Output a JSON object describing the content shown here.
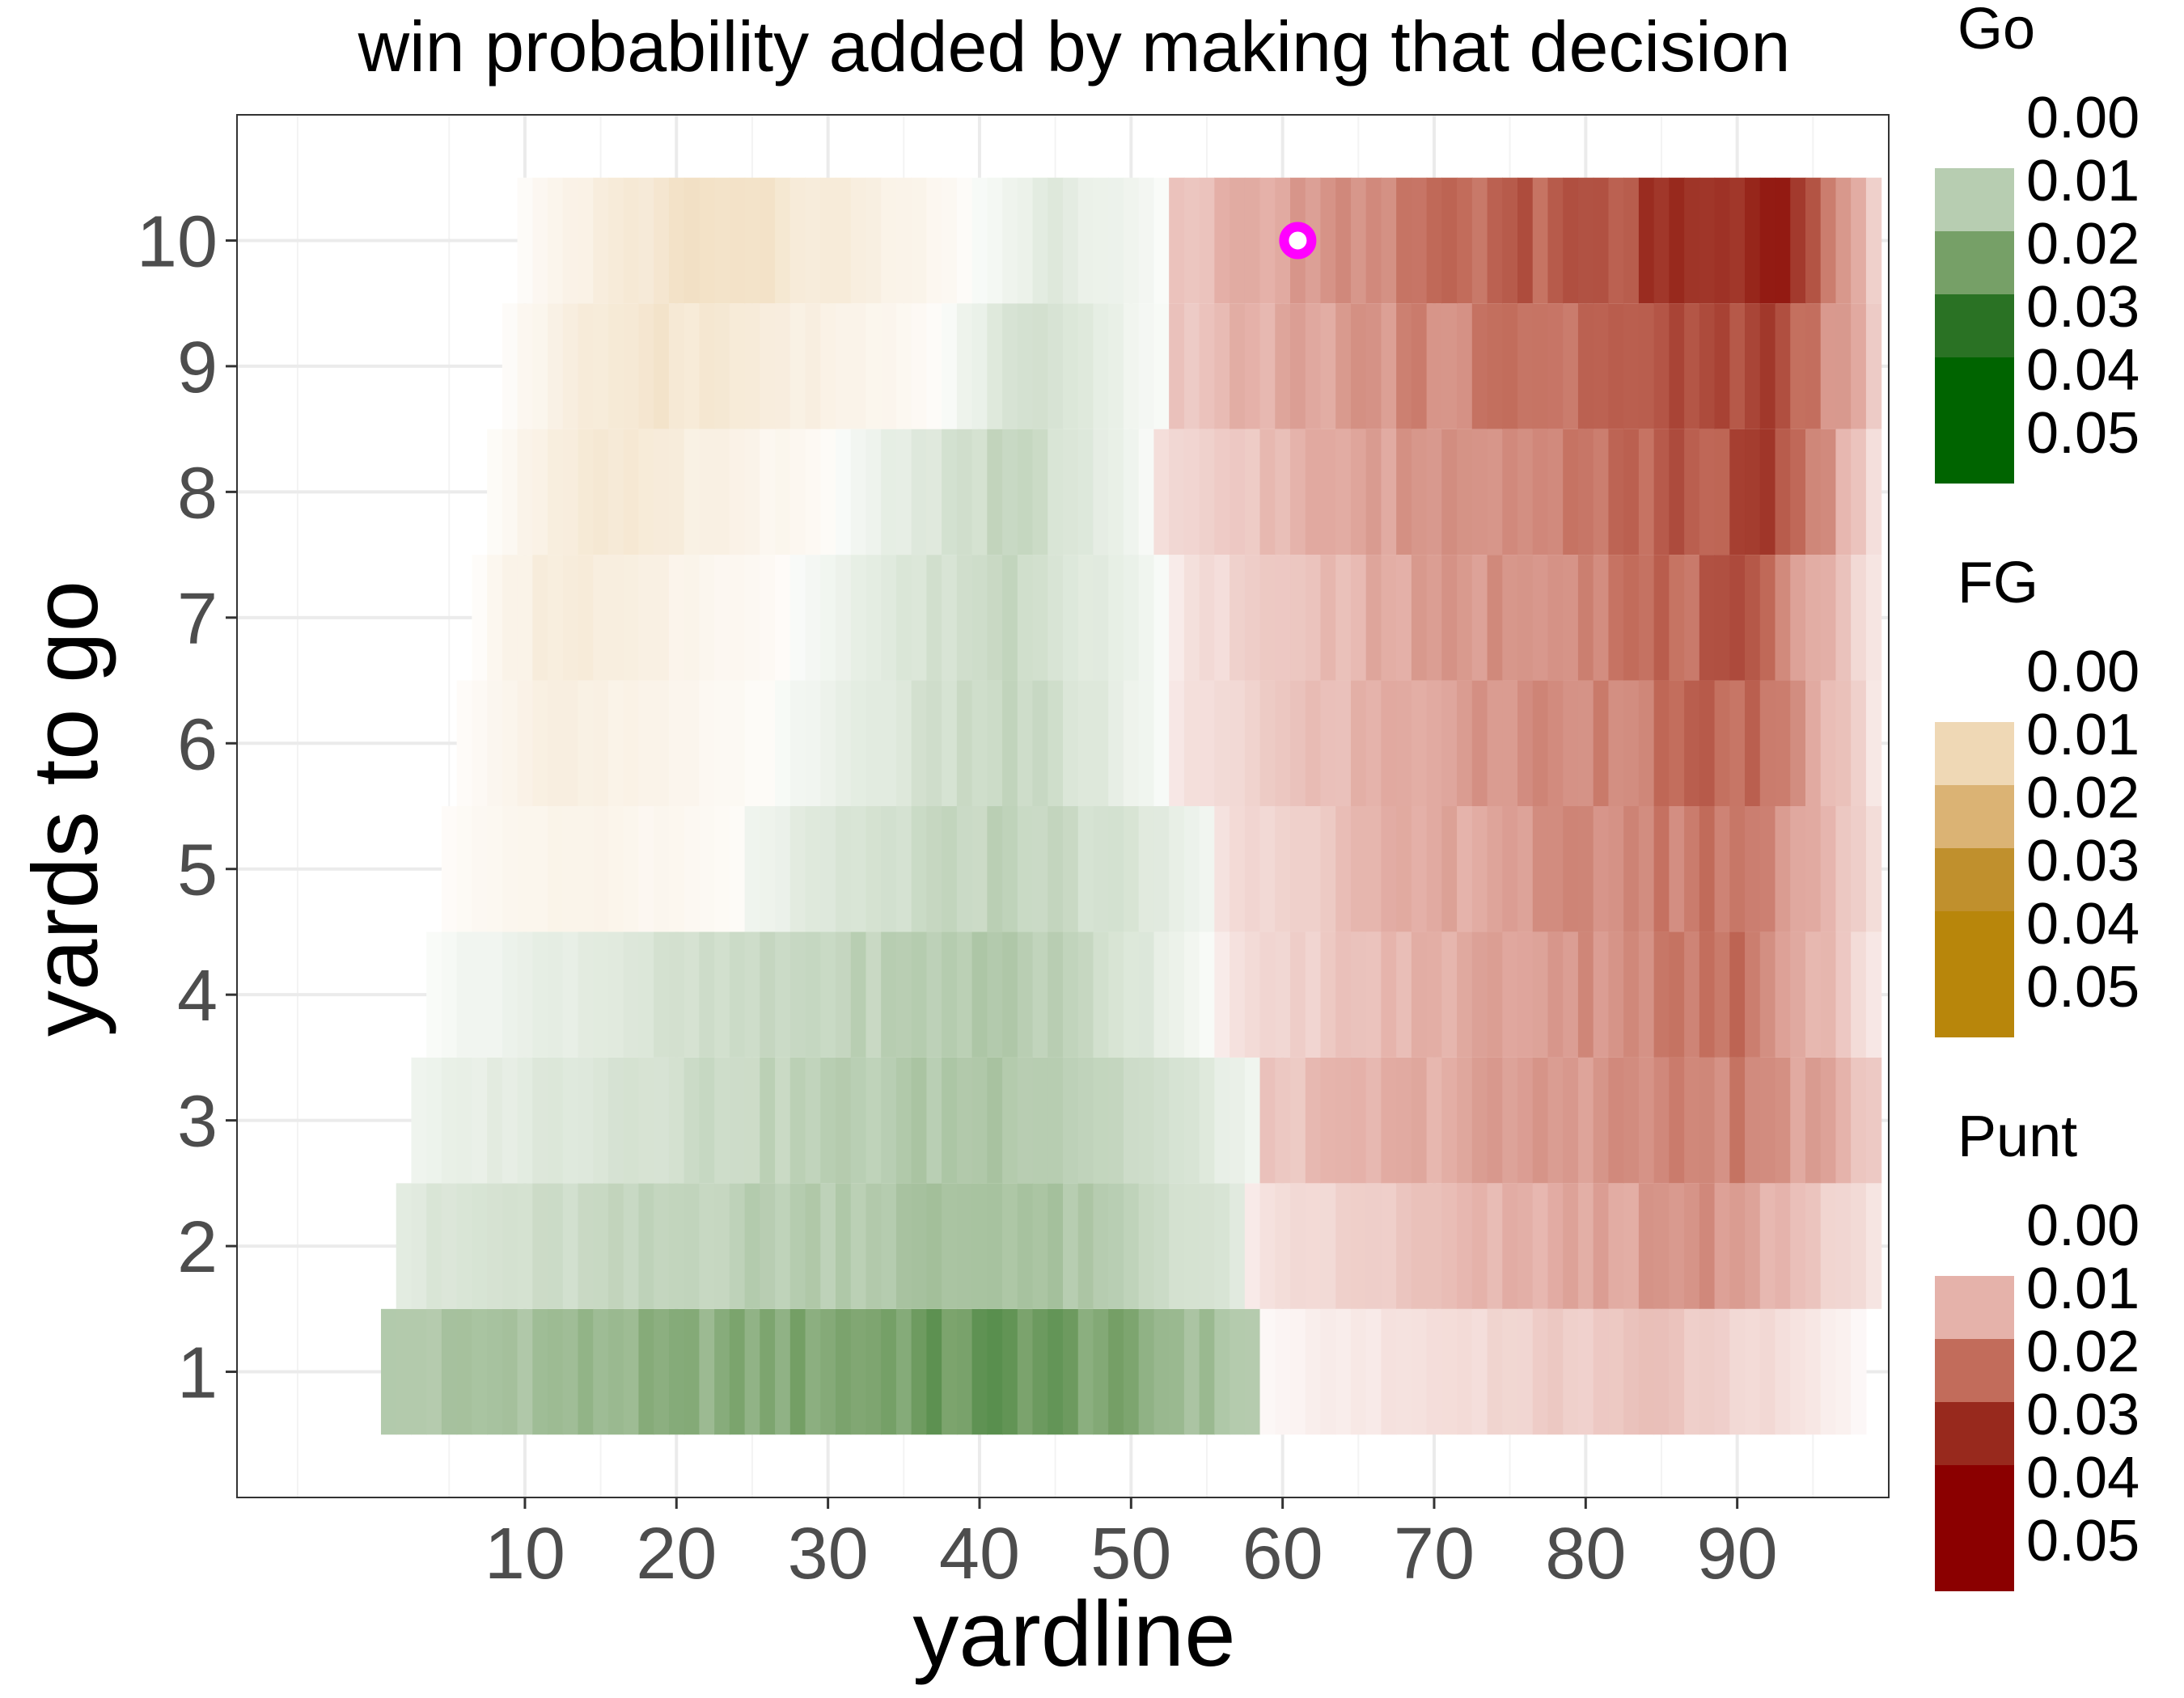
{
  "chart_data": {
    "type": "heatmap",
    "title": "win probability added by making that decision",
    "xlabel": "yardline",
    "ylabel": "yards to go",
    "xlim": [
      -9,
      100
    ],
    "ylim": [
      0.0,
      11.0
    ],
    "xticks": [
      10,
      20,
      30,
      40,
      50,
      60,
      70,
      80,
      90
    ],
    "yticks": [
      1,
      2,
      3,
      4,
      5,
      6,
      7,
      8,
      9,
      10
    ],
    "grid": true,
    "legend_position": "right",
    "highlight_point": {
      "x": 61,
      "y": 10,
      "color": "#ff00ff"
    },
    "decision_colors": {
      "Go": "#006400",
      "FG": "#b8860b",
      "Punt": "#8b0000"
    },
    "rows": [
      {
        "ydstogo": 1,
        "x_start": 1,
        "x_end": 98,
        "segments": [
          {
            "decision": "Go",
            "from": 1,
            "to": 58,
            "peak": 43,
            "peak_value": 0.022,
            "edge_value": 0.01
          },
          {
            "decision": "Punt",
            "from": 59,
            "to": 98,
            "peak": 85,
            "peak_value": 0.008,
            "edge_value": 0.001
          }
        ]
      },
      {
        "ydstogo": 2,
        "x_start": 2,
        "x_end": 99,
        "segments": [
          {
            "decision": "Go",
            "from": 2,
            "to": 57,
            "peak": 42,
            "peak_value": 0.013,
            "edge_value": 0.004
          },
          {
            "decision": "Punt",
            "from": 58,
            "to": 99,
            "peak": 88,
            "peak_value": 0.014,
            "edge_value": 0.003
          }
        ]
      },
      {
        "ydstogo": 3,
        "x_start": 3,
        "x_end": 99,
        "segments": [
          {
            "decision": "Go",
            "from": 3,
            "to": 58,
            "peak": 42,
            "peak_value": 0.012,
            "edge_value": 0.002
          },
          {
            "decision": "Punt",
            "from": 59,
            "to": 99,
            "peak": 90,
            "peak_value": 0.017,
            "edge_value": 0.007
          }
        ]
      },
      {
        "ydstogo": 4,
        "x_start": 4,
        "x_end": 99,
        "segments": [
          {
            "decision": "Go",
            "from": 4,
            "to": 55,
            "peak": 42,
            "peak_value": 0.011,
            "edge_value": 0.001
          },
          {
            "decision": "Punt",
            "from": 56,
            "to": 99,
            "peak": 90,
            "peak_value": 0.019,
            "edge_value": 0.003
          }
        ]
      },
      {
        "ydstogo": 5,
        "x_start": 5,
        "x_end": 99,
        "segments": [
          {
            "decision": "FG",
            "from": 5,
            "to": 24,
            "peak": 14,
            "peak_value": 0.003,
            "edge_value": 0.001
          },
          {
            "decision": "Go",
            "from": 25,
            "to": 55,
            "peak": 42,
            "peak_value": 0.009,
            "edge_value": 0.002
          },
          {
            "decision": "Punt",
            "from": 56,
            "to": 99,
            "peak": 90,
            "peak_value": 0.019,
            "edge_value": 0.004
          }
        ]
      },
      {
        "ydstogo": 6,
        "x_start": 6,
        "x_end": 99,
        "segments": [
          {
            "decision": "FG",
            "from": 6,
            "to": 26,
            "peak": 12,
            "peak_value": 0.004,
            "edge_value": 0.001
          },
          {
            "decision": "Go",
            "from": 27,
            "to": 52,
            "peak": 42,
            "peak_value": 0.008,
            "edge_value": 0.001
          },
          {
            "decision": "Punt",
            "from": 53,
            "to": 99,
            "peak": 90,
            "peak_value": 0.021,
            "edge_value": 0.003
          }
        ]
      },
      {
        "ydstogo": 7,
        "x_start": 7,
        "x_end": 99,
        "segments": [
          {
            "decision": "FG",
            "from": 7,
            "to": 27,
            "peak": 12,
            "peak_value": 0.005,
            "edge_value": 0.001
          },
          {
            "decision": "Go",
            "from": 28,
            "to": 52,
            "peak": 42,
            "peak_value": 0.008,
            "edge_value": 0.001
          },
          {
            "decision": "Punt",
            "from": 53,
            "to": 99,
            "peak": 90,
            "peak_value": 0.022,
            "edge_value": 0.003
          }
        ]
      },
      {
        "ydstogo": 8,
        "x_start": 8,
        "x_end": 99,
        "segments": [
          {
            "decision": "FG",
            "from": 8,
            "to": 30,
            "peak": 14,
            "peak_value": 0.006,
            "edge_value": 0.001
          },
          {
            "decision": "Go",
            "from": 31,
            "to": 51,
            "peak": 42,
            "peak_value": 0.008,
            "edge_value": 0.001
          },
          {
            "decision": "Punt",
            "from": 52,
            "to": 99,
            "peak": 92,
            "peak_value": 0.025,
            "edge_value": 0.004
          }
        ]
      },
      {
        "ydstogo": 9,
        "x_start": 9,
        "x_end": 99,
        "segments": [
          {
            "decision": "FG",
            "from": 9,
            "to": 37,
            "peak": 18,
            "peak_value": 0.007,
            "edge_value": 0.001
          },
          {
            "decision": "Go",
            "from": 38,
            "to": 52,
            "peak": 43,
            "peak_value": 0.006,
            "edge_value": 0.001
          },
          {
            "decision": "Punt",
            "from": 53,
            "to": 99,
            "peak": 92,
            "peak_value": 0.026,
            "edge_value": 0.007
          }
        ]
      },
      {
        "ydstogo": 10,
        "x_start": 10,
        "x_end": 99,
        "segments": [
          {
            "decision": "FG",
            "from": 10,
            "to": 39,
            "peak": 22,
            "peak_value": 0.008,
            "edge_value": 0.001
          },
          {
            "decision": "Go",
            "from": 40,
            "to": 52,
            "peak": 45,
            "peak_value": 0.004,
            "edge_value": 0.001
          },
          {
            "decision": "Punt",
            "from": 53,
            "to": 99,
            "peak": 93,
            "peak_value": 0.031,
            "edge_value": 0.007
          }
        ]
      }
    ],
    "legends": [
      {
        "title": "Go",
        "labels": [
          "0.00",
          "0.01",
          "0.02",
          "0.03",
          "0.04",
          "0.05"
        ],
        "swatches": [
          "#b7cdb1",
          "#76a067",
          "#2a7224",
          "#006400",
          "#006400"
        ]
      },
      {
        "title": "FG",
        "labels": [
          "0.00",
          "0.01",
          "0.02",
          "0.03",
          "0.04",
          "0.05"
        ],
        "swatches": [
          "#efd8b5",
          "#dbb374",
          "#c0902d",
          "#b8860b",
          "#b8860b"
        ]
      },
      {
        "title": "Punt",
        "labels": [
          "0.00",
          "0.01",
          "0.02",
          "0.03",
          "0.04",
          "0.05"
        ],
        "swatches": [
          "#e5b2aa",
          "#c26c5b",
          "#98291d",
          "#8b0000",
          "#8b0000"
        ]
      }
    ]
  }
}
